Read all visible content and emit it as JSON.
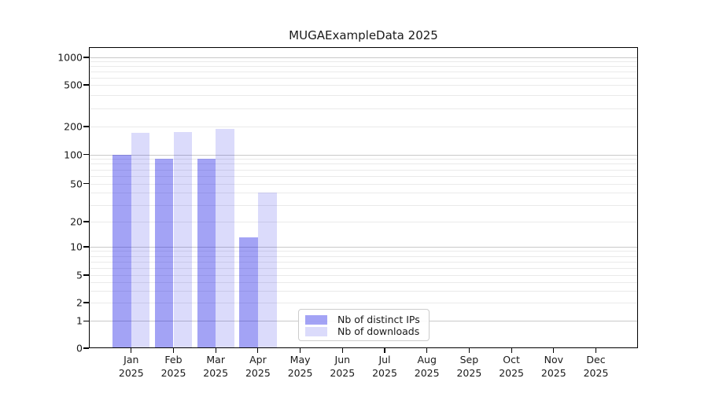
{
  "title": "MUGAExampleData 2025",
  "colors": {
    "ips_bar": "rgba(25,25,230,0.40)",
    "downloads_bar": "rgba(25,25,230,0.155)",
    "grid_major": "#c9c9c9",
    "grid_minor": "#eaeaea",
    "axis": "#000000",
    "text": "#1a1a1a",
    "legend_border": "#cccccc"
  },
  "legend": {
    "items": [
      {
        "label": "Nb of distinct IPs",
        "color_key": "ips_bar"
      },
      {
        "label": "Nb of downloads",
        "color_key": "downloads_bar"
      }
    ]
  },
  "chart_data": {
    "type": "bar",
    "title": "MUGAExampleData 2025",
    "categories": [
      "Jan 2025",
      "Feb 2025",
      "Mar 2025",
      "Apr 2025",
      "May 2025",
      "Jun 2025",
      "Jul 2025",
      "Aug 2025",
      "Sep 2025",
      "Oct 2025",
      "Nov 2025",
      "Dec 2025"
    ],
    "series": [
      {
        "name": "Nb of distinct IPs",
        "values": [
          100,
          90,
          90,
          13,
          0,
          0,
          0,
          0,
          0,
          0,
          0,
          0
        ]
      },
      {
        "name": "Nb of downloads",
        "values": [
          171,
          176,
          190,
          40,
          0,
          0,
          0,
          0,
          0,
          0,
          0,
          0
        ]
      }
    ],
    "xlabel": "",
    "ylabel": "",
    "yscale": "log-with-zero",
    "yticks": [
      0,
      1,
      2,
      5,
      10,
      20,
      50,
      100,
      200,
      500,
      1000
    ],
    "ylim": [
      0,
      1300
    ],
    "grid": "horizontal",
    "legend_position": "inside lower-center"
  }
}
